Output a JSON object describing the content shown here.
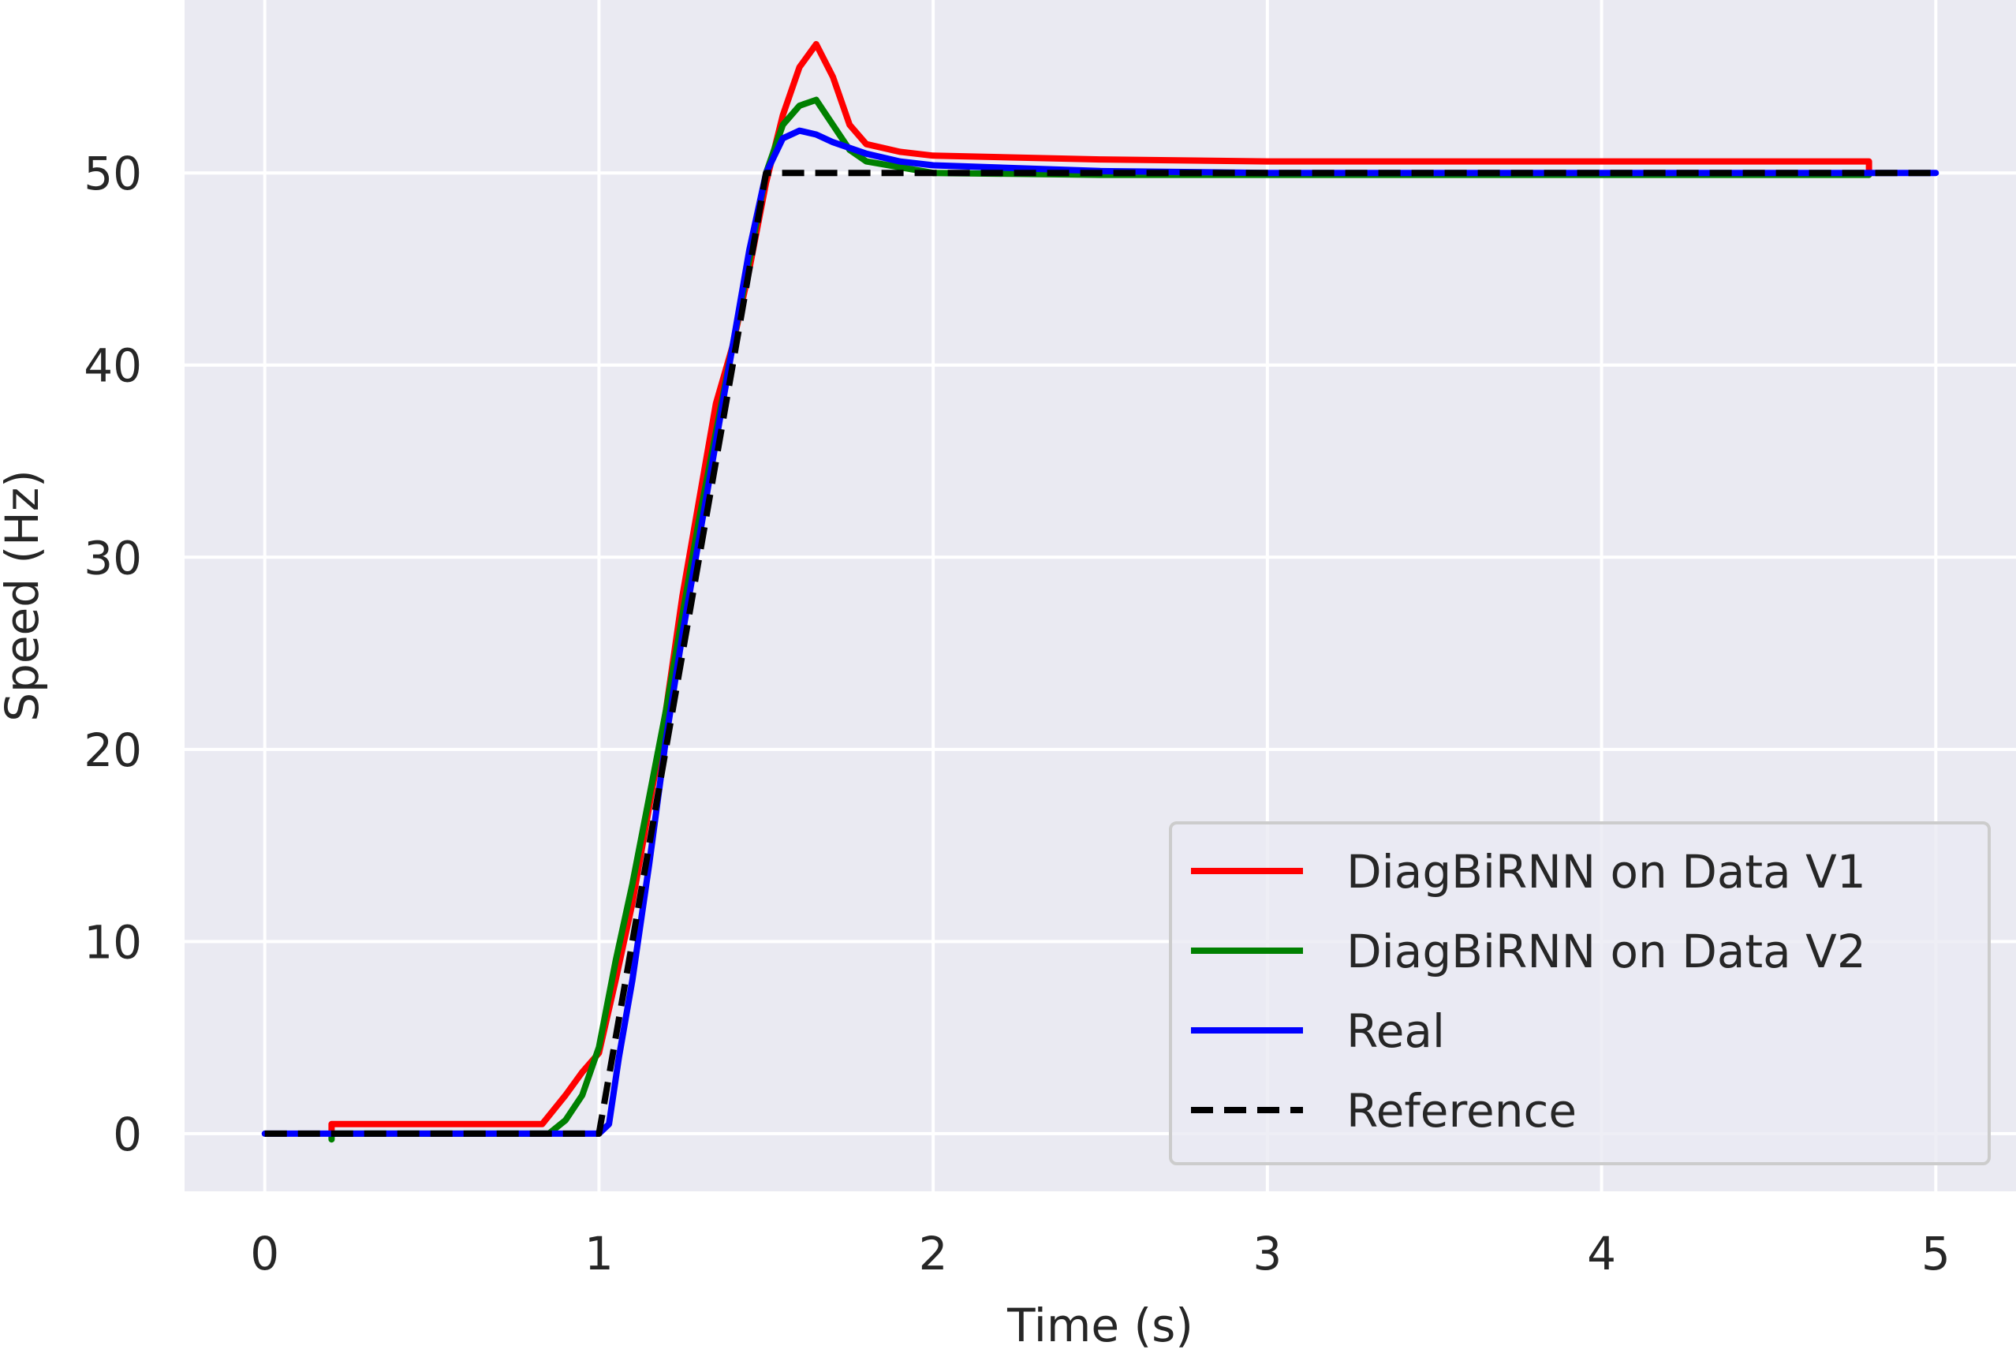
{
  "chart_data": {
    "type": "line",
    "xlabel": "Time (s)",
    "ylabel": "Speed (Hz)",
    "xlim": [
      -0.24,
      5.24
    ],
    "ylim": [
      -3,
      59
    ],
    "xticks": [
      0,
      1,
      2,
      3,
      4,
      5
    ],
    "yticks": [
      0,
      10,
      20,
      30,
      40,
      50
    ],
    "xtick_labels": [
      "0",
      "1",
      "2",
      "3",
      "4",
      "5"
    ],
    "ytick_labels": [
      "0",
      "10",
      "20",
      "30",
      "40",
      "50"
    ],
    "grid": true,
    "legend_position": "lower-right",
    "series": [
      {
        "name": "DiagBiRNN on Data V1",
        "color": "#ff0000",
        "style": "solid",
        "points": [
          [
            0.2,
            0
          ],
          [
            0.2,
            0.5
          ],
          [
            0.83,
            0.5
          ],
          [
            0.9,
            2
          ],
          [
            0.95,
            3.2
          ],
          [
            1.0,
            4.2
          ],
          [
            1.05,
            8
          ],
          [
            1.1,
            12
          ],
          [
            1.15,
            17
          ],
          [
            1.2,
            22
          ],
          [
            1.25,
            28
          ],
          [
            1.3,
            33
          ],
          [
            1.35,
            38
          ],
          [
            1.4,
            41
          ],
          [
            1.45,
            45
          ],
          [
            1.5,
            49.5
          ],
          [
            1.55,
            53
          ],
          [
            1.6,
            55.5
          ],
          [
            1.65,
            56.7
          ],
          [
            1.7,
            55
          ],
          [
            1.75,
            52.5
          ],
          [
            1.8,
            51.5
          ],
          [
            1.9,
            51.1
          ],
          [
            2.0,
            50.9
          ],
          [
            2.5,
            50.7
          ],
          [
            3.0,
            50.6
          ],
          [
            4.8,
            50.6
          ],
          [
            4.8,
            49.9
          ]
        ]
      },
      {
        "name": "DiagBiRNN on Data V2",
        "color": "#008000",
        "style": "solid",
        "points": [
          [
            0.2,
            -0.3
          ],
          [
            0.2,
            0
          ],
          [
            0.8,
            0
          ],
          [
            0.85,
            0
          ],
          [
            0.9,
            0.7
          ],
          [
            0.95,
            2
          ],
          [
            1.0,
            4.5
          ],
          [
            1.05,
            9
          ],
          [
            1.1,
            13
          ],
          [
            1.15,
            17.5
          ],
          [
            1.2,
            22
          ],
          [
            1.25,
            27
          ],
          [
            1.3,
            32
          ],
          [
            1.35,
            36.5
          ],
          [
            1.4,
            41
          ],
          [
            1.45,
            45.5
          ],
          [
            1.5,
            50
          ],
          [
            1.55,
            52.5
          ],
          [
            1.6,
            53.5
          ],
          [
            1.65,
            53.8
          ],
          [
            1.7,
            52.5
          ],
          [
            1.75,
            51.2
          ],
          [
            1.8,
            50.6
          ],
          [
            1.9,
            50.3
          ],
          [
            2.0,
            50.0
          ],
          [
            2.5,
            49.9
          ],
          [
            4.8,
            49.9
          ]
        ]
      },
      {
        "name": "Real",
        "color": "#0000ff",
        "style": "solid",
        "points": [
          [
            0,
            0
          ],
          [
            1.0,
            0
          ],
          [
            1.03,
            0.5
          ],
          [
            1.06,
            4
          ],
          [
            1.1,
            8
          ],
          [
            1.15,
            14
          ],
          [
            1.2,
            20.5
          ],
          [
            1.25,
            26
          ],
          [
            1.3,
            31
          ],
          [
            1.35,
            36
          ],
          [
            1.4,
            41
          ],
          [
            1.45,
            46
          ],
          [
            1.5,
            50
          ],
          [
            1.55,
            51.8
          ],
          [
            1.6,
            52.2
          ],
          [
            1.65,
            52
          ],
          [
            1.7,
            51.6
          ],
          [
            1.8,
            51
          ],
          [
            1.9,
            50.6
          ],
          [
            2.0,
            50.4
          ],
          [
            2.5,
            50.1
          ],
          [
            3.0,
            50.0
          ],
          [
            5.0,
            50.0
          ]
        ]
      },
      {
        "name": "Reference",
        "color": "#000000",
        "style": "dashed",
        "points": [
          [
            0,
            0
          ],
          [
            1.0,
            0
          ],
          [
            1.5,
            50
          ],
          [
            5.0,
            50
          ]
        ]
      }
    ]
  }
}
